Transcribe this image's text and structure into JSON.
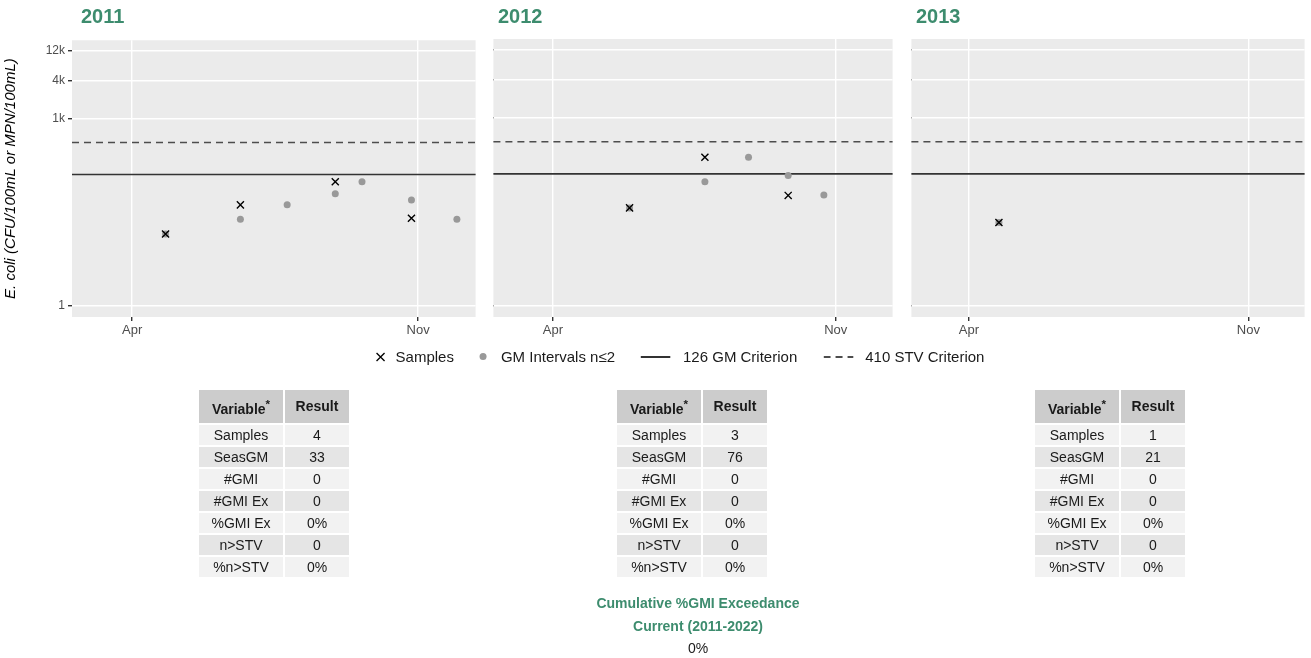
{
  "chart_data": [
    {
      "type": "scatter",
      "title": "2011",
      "ylabel": "E. coli (CFU/100mL or MPN/100mL)",
      "log": "y",
      "grid": true,
      "legend": false,
      "xlim": [
        "2011-02-15",
        "2011-12-14"
      ],
      "xticks": [
        {
          "value": "2011-04-01",
          "label": "Apr"
        },
        {
          "value": "2011-11-01",
          "label": "Nov"
        }
      ],
      "ylim": [
        0.65,
        18000
      ],
      "yticks": [
        1,
        {
          "value": 1000,
          "label": "1k"
        },
        {
          "value": 4000,
          "label": "4k"
        },
        {
          "value": 12000,
          "label": "12k"
        }
      ],
      "series": [
        {
          "color": "#000000",
          "marker": "cross",
          "x": [
            "2011-04-26",
            "2011-06-21",
            "2011-08-31",
            "2011-10-27"
          ],
          "values": [
            14,
            41,
            96,
            25
          ]
        },
        {
          "color": "#999999",
          "marker": "circle",
          "x": [
            "2011-04-26",
            "2011-06-21",
            "2011-07-26",
            "2011-08-31",
            "2011-09-20",
            "2011-10-27",
            "2011-11-30"
          ],
          "values": [
            14,
            24,
            41,
            62,
            96,
            49,
            24
          ]
        }
      ],
      "ref_lines": [
        {
          "axis": "y",
          "value": 126,
          "color": "#333333",
          "line_style": "solid"
        },
        {
          "axis": "y",
          "value": 410,
          "color": "#4d4d4d",
          "line_style": "dashed"
        }
      ]
    },
    {
      "type": "scatter",
      "title": "2012",
      "log": "y",
      "grid": true,
      "legend": "bottom",
      "tick_labels": "x",
      "xlim": [
        "2012-02-16",
        "2012-12-14"
      ],
      "xticks": [
        {
          "value": "2012-04-01",
          "label": "Apr"
        },
        {
          "value": "2012-11-01",
          "label": "Nov"
        }
      ],
      "ylim": [
        0.65,
        18000
      ],
      "yticks": [
        1,
        1000,
        4000,
        12000
      ],
      "series": [
        {
          "name": "Samples",
          "color": "#000000",
          "marker": "cross",
          "x": [
            "2012-05-29",
            "2012-07-25",
            "2012-09-26"
          ],
          "values": [
            36,
            232,
            57
          ]
        },
        {
          "name": "GM Intervals n≤2",
          "color": "#999999",
          "marker": "circle",
          "x": [
            "2012-05-29",
            "2012-07-25",
            "2012-08-27",
            "2012-09-26",
            "2012-10-23"
          ],
          "values": [
            36,
            94,
            232,
            119,
            58
          ]
        }
      ],
      "ref_lines": [
        {
          "axis": "y",
          "value": 126,
          "label": "126 GM Criterion",
          "color": "#333333",
          "line_style": "solid"
        },
        {
          "axis": "y",
          "value": 410,
          "label": "410 STV Criterion",
          "color": "#4d4d4d",
          "line_style": "dashed"
        }
      ]
    },
    {
      "type": "scatter",
      "title": "2013",
      "log": "y",
      "grid": true,
      "legend": false,
      "tick_labels": "x",
      "xlim": [
        "2013-02-16",
        "2013-12-14"
      ],
      "xticks": [
        {
          "value": "2013-04-01",
          "label": "Apr"
        },
        {
          "value": "2013-11-01",
          "label": "Nov"
        }
      ],
      "ylim": [
        0.65,
        18000
      ],
      "yticks": [
        1,
        1000,
        4000,
        12000
      ],
      "series": [
        {
          "color": "#000000",
          "marker": "cross",
          "x": [
            "2013-04-24"
          ],
          "values": [
            21
          ]
        },
        {
          "color": "#999999",
          "marker": "circle",
          "x": [
            "2013-04-24"
          ],
          "values": [
            21
          ]
        }
      ],
      "ref_lines": [
        {
          "axis": "y",
          "value": 126,
          "color": "#333333",
          "line_style": "solid"
        },
        {
          "axis": "y",
          "value": 410,
          "color": "#4d4d4d",
          "line_style": "dashed"
        }
      ]
    },
    {
      "type": "other",
      "annotations": [
        "Variable$^{*}$",
        "Result",
        "Samples",
        "4",
        "SeasGM",
        "33",
        "#GMI",
        "0",
        "#GMI Ex",
        "0",
        "%GMI Ex",
        "0%",
        "n>STV",
        "0",
        "%n>STV",
        "0%"
      ]
    },
    {
      "type": "other",
      "annotations": [
        "Variable$^{*}$",
        "Result",
        "Samples",
        "3",
        "SeasGM",
        "76",
        "#GMI",
        "0",
        "#GMI Ex",
        "0",
        "%GMI Ex",
        "0%",
        "n>STV",
        "0",
        "%n>STV",
        "0%"
      ]
    },
    {
      "type": "other",
      "annotations": [
        "Variable$^{*}$",
        "Result",
        "Samples",
        "1",
        "SeasGM",
        "21",
        "#GMI",
        "0",
        "#GMI Ex",
        "0",
        "%GMI Ex",
        "0%",
        "n>STV",
        "0",
        "%n>STV",
        "0%"
      ]
    },
    {
      "type": "other",
      "title": "Cumulative %GMI Exceedance",
      "subtitle": "Current (2011-2022)",
      "annotations": [
        "0%"
      ]
    }
  ]
}
